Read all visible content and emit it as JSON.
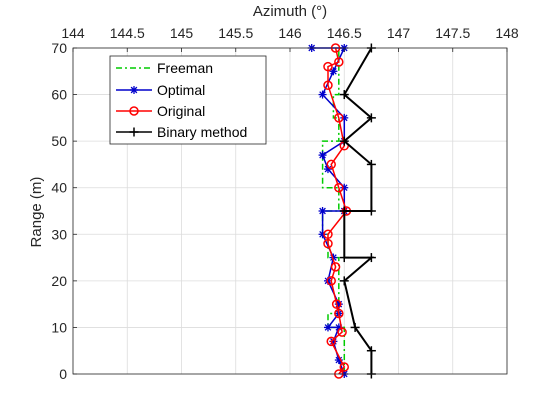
{
  "chart_data": {
    "type": "line",
    "title": "",
    "xlabel": "Azimuth (°)",
    "ylabel": "Range (m)",
    "xlim": [
      144,
      148
    ],
    "ylim": [
      0,
      70
    ],
    "x_axis_position": "top",
    "y_direction": "normal",
    "xticks": [
      144,
      144.5,
      145,
      145.5,
      146,
      146.5,
      147,
      147.5,
      148
    ],
    "xtick_labels": [
      "144",
      "144.5",
      "145",
      "145.5",
      "146",
      "146.5",
      "147",
      "147.5",
      "148"
    ],
    "yticks": [
      0,
      10,
      20,
      30,
      40,
      50,
      60,
      70
    ],
    "ytick_labels": [
      "0",
      "10",
      "20",
      "30",
      "40",
      "50",
      "60",
      "70"
    ],
    "grid": true,
    "legend_position": "top-left",
    "series": [
      {
        "name": "Freeman",
        "color": "#00cc00",
        "line_style": "dash-dot",
        "marker": "none",
        "drawstyle": "steps",
        "points": [
          [
            146.5,
            0
          ],
          [
            146.5,
            10
          ],
          [
            146.35,
            10
          ],
          [
            146.35,
            13
          ],
          [
            146.45,
            13
          ],
          [
            146.45,
            25
          ],
          [
            146.35,
            25
          ],
          [
            146.35,
            30
          ],
          [
            146.3,
            30
          ],
          [
            146.3,
            35
          ],
          [
            146.45,
            35
          ],
          [
            146.45,
            40
          ],
          [
            146.3,
            40
          ],
          [
            146.3,
            50
          ],
          [
            146.45,
            50
          ],
          [
            146.45,
            55
          ],
          [
            146.4,
            55
          ],
          [
            146.4,
            60
          ],
          [
            146.45,
            60
          ],
          [
            146.45,
            70
          ]
        ]
      },
      {
        "name": "Optimal",
        "color": "#0000cc",
        "line_style": "solid",
        "marker": "asterisk",
        "points": [
          [
            146.5,
            0
          ],
          [
            146.45,
            3
          ],
          [
            146.4,
            7
          ],
          [
            146.45,
            10
          ],
          [
            146.35,
            10
          ],
          [
            146.45,
            13
          ],
          [
            146.45,
            15
          ],
          [
            146.35,
            20
          ],
          [
            146.4,
            25
          ],
          [
            146.3,
            30
          ],
          [
            146.3,
            35
          ],
          [
            146.5,
            35
          ],
          [
            146.5,
            40
          ],
          [
            146.35,
            44
          ],
          [
            146.3,
            47
          ],
          [
            146.5,
            50
          ],
          [
            146.5,
            55
          ],
          [
            146.3,
            60
          ],
          [
            146.4,
            65
          ],
          [
            146.5,
            70
          ],
          [
            146.2,
            70
          ]
        ]
      },
      {
        "name": "Original",
        "color": "#ff0000",
        "line_style": "solid",
        "marker": "circle",
        "points": [
          [
            146.45,
            0
          ],
          [
            146.5,
            1.5
          ],
          [
            146.38,
            7
          ],
          [
            146.48,
            9
          ],
          [
            146.45,
            13
          ],
          [
            146.43,
            15
          ],
          [
            146.38,
            20
          ],
          [
            146.42,
            23
          ],
          [
            146.35,
            28
          ],
          [
            146.35,
            30
          ],
          [
            146.52,
            35
          ],
          [
            146.45,
            40
          ],
          [
            146.38,
            45
          ],
          [
            146.5,
            49
          ],
          [
            146.45,
            55
          ],
          [
            146.35,
            62
          ],
          [
            146.35,
            66
          ],
          [
            146.45,
            67
          ],
          [
            146.42,
            70
          ]
        ]
      },
      {
        "name": "Binary method",
        "color": "#000000",
        "line_style": "solid",
        "marker": "plus",
        "points": [
          [
            146.75,
            0
          ],
          [
            146.75,
            5
          ],
          [
            146.6,
            10
          ],
          [
            146.5,
            20
          ],
          [
            146.75,
            25
          ],
          [
            146.5,
            25
          ],
          [
            146.5,
            35
          ],
          [
            146.75,
            35
          ],
          [
            146.75,
            45
          ],
          [
            146.5,
            50
          ],
          [
            146.75,
            55
          ],
          [
            146.5,
            60
          ],
          [
            146.75,
            70
          ]
        ]
      }
    ]
  }
}
